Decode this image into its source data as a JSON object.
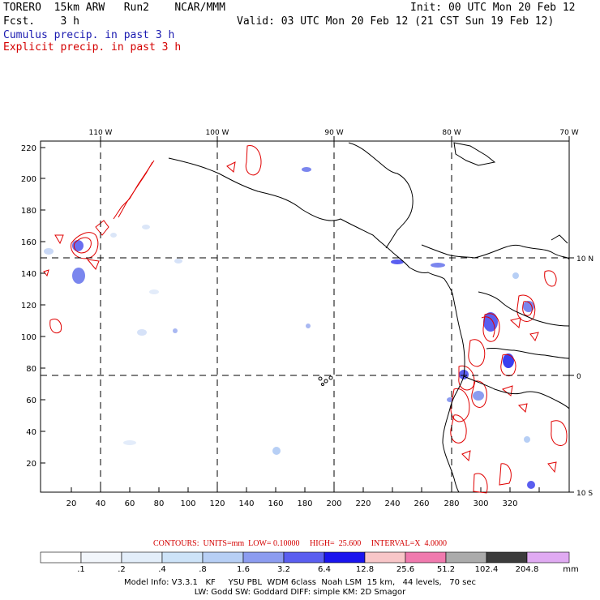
{
  "header": {
    "title": "TORERO  15km ARW   Run2    NCAR/MMM",
    "fcst": "Fcst.    3 h",
    "init": "Init: 00 UTC Mon 20 Feb 12",
    "valid": "Valid: 03 UTC Mon 20 Feb 12 (21 CST Sun 19 Feb 12)",
    "legend_cumulus": "Cumulus precip. in past 3 h",
    "legend_explicit": "Explicit precip. in past 3 h"
  },
  "map": {
    "lon_labels": [
      "110 W",
      "100 W",
      "90 W",
      "80 W",
      "70 W"
    ],
    "lat_labels": [
      "10 N",
      "0",
      "10 S"
    ],
    "y_ticks": [
      "220",
      "200",
      "180",
      "160",
      "140",
      "120",
      "100",
      "80",
      "60",
      "40",
      "20"
    ],
    "x_ticks": [
      "20",
      "40",
      "60",
      "80",
      "100",
      "120",
      "140",
      "160",
      "180",
      "200",
      "220",
      "240",
      "260",
      "280",
      "300",
      "320"
    ],
    "colors": {
      "coast": "#000000",
      "cumulus": "#5a6cf0",
      "explicit": "#e00000"
    }
  },
  "contours_caption": "CONTOURS:  UNITS=mm  LOW= 0.10000     HIGH=  25.600     INTERVAL=X  4.0000",
  "colorbar": {
    "labels": [
      ".1",
      ".2",
      ".4",
      ".8",
      "1.6",
      "3.2",
      "6.4",
      "12.8",
      "25.6",
      "51.2",
      "102.4",
      "204.8"
    ],
    "unit": "mm",
    "colors": [
      "#ffffff",
      "#f2f6fb",
      "#e3eefa",
      "#cde3f8",
      "#b7cff5",
      "#8c9cf0",
      "#5a5ef0",
      "#1a14ee",
      "#f8c6c8",
      "#f07aae",
      "#ababab",
      "#3c3c3c",
      "#e0aaf2"
    ]
  },
  "model_info": {
    "line1": "Model Info: V3.3.1   KF     YSU PBL  WDM 6class  Noah LSM  15 km,   44 levels,   70 sec",
    "line2": "LW: Godd SW: Goddard DIFF: simple KM: 2D Smagor"
  }
}
